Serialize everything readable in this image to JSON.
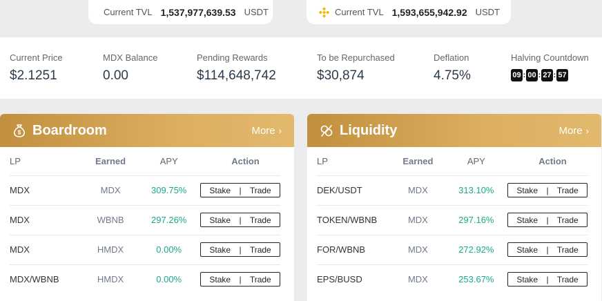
{
  "tvl": [
    {
      "label": "Current TVL",
      "value": "1,537,977,639.53",
      "unit": "USDT",
      "icon": "heco-flame-icon"
    },
    {
      "label": "Current TVL",
      "value": "1,593,655,942.92",
      "unit": "USDT",
      "icon": "bnb-icon"
    }
  ],
  "stats": {
    "price": {
      "label": "Current Price",
      "value": "$2.1251"
    },
    "balance": {
      "label": "MDX Balance",
      "value": "0.00"
    },
    "pending": {
      "label": "Pending Rewards",
      "value": "$114,648,742"
    },
    "repurchase": {
      "label": "To be Repurchased",
      "value": "$30,874"
    },
    "deflation": {
      "label": "Deflation",
      "value": "4.75%"
    },
    "halving": {
      "label": "Halving Countdown",
      "digits": [
        "09",
        "00",
        "27",
        "57"
      ]
    }
  },
  "boardroom": {
    "title": "Boardroom",
    "more": "More",
    "columns": [
      "LP",
      "Earned",
      "APY",
      "Action"
    ],
    "rows": [
      {
        "lp": "MDX",
        "earned": "MDX",
        "apy": "309.75%"
      },
      {
        "lp": "MDX",
        "earned": "WBNB",
        "apy": "297.26%"
      },
      {
        "lp": "MDX",
        "earned": "HMDX",
        "apy": "0.00%"
      },
      {
        "lp": "MDX/WBNB",
        "earned": "HMDX",
        "apy": "0.00%"
      }
    ]
  },
  "liquidity": {
    "title": "Liquidity",
    "more": "More",
    "columns": [
      "LP",
      "Earned",
      "APY",
      "Action"
    ],
    "rows": [
      {
        "lp": "DEK/USDT",
        "earned": "MDX",
        "apy": "313.10%"
      },
      {
        "lp": "TOKEN/WBNB",
        "earned": "MDX",
        "apy": "297.16%"
      },
      {
        "lp": "FOR/WBNB",
        "earned": "MDX",
        "apy": "272.92%"
      },
      {
        "lp": "EPS/BUSD",
        "earned": "MDX",
        "apy": "253.67%"
      }
    ]
  },
  "actions": {
    "stake": "Stake",
    "separator": "|",
    "trade": "Trade"
  },
  "colors": {
    "gold": "#c99a4a",
    "apy_green": "#1aa88a"
  }
}
